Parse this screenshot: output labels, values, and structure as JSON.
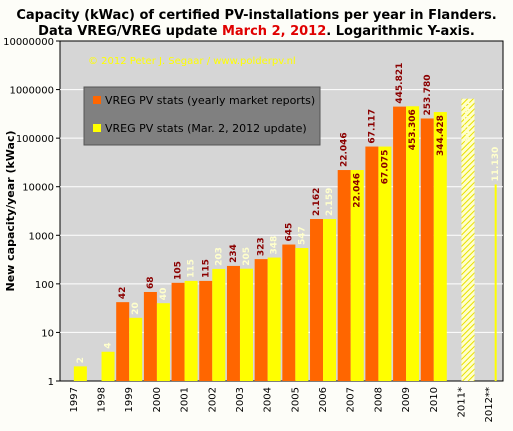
{
  "chart_data": {
    "type": "bar",
    "title_line1": "Capacity (kWac) of certified PV-installations  per year in Flanders.",
    "title_line2_pre": "Data VREG/VREG update ",
    "title_line2_highlight": "March 2, 2012",
    "title_line2_post": ". Logarithmic Y-axis.",
    "copyright": "© 2012 Peter J. Segaar / www.polderpv.nl",
    "ylabel": "New capacity/year (kWac)",
    "xlabel": "",
    "yscale": "log",
    "ylim": [
      1,
      10000000
    ],
    "ytick_labels": [
      "10000000",
      "1000000",
      "100000",
      "10000",
      "1000",
      "100",
      "10",
      "1"
    ],
    "ytick_values": [
      10000000,
      1000000,
      100000,
      10000,
      1000,
      100,
      10,
      1
    ],
    "categories": [
      "1997",
      "1998",
      "1999",
      "2000",
      "2001",
      "2002",
      "2003",
      "2004",
      "2005",
      "2006",
      "2007",
      "2008",
      "2009",
      "2010",
      "2011*",
      "2012**"
    ],
    "grid": true,
    "legend_position": "top-left",
    "series": [
      {
        "name": "VREG PV stats (yearly market reports)",
        "color": "#ff6600",
        "values": [
          null,
          null,
          42,
          68,
          105,
          115,
          234,
          323,
          645,
          2162,
          22046,
          67117,
          445821,
          253780,
          null,
          null
        ],
        "labels": [
          "",
          "",
          "42",
          "68",
          "105",
          "115",
          "234",
          "323",
          "645",
          "2.162",
          "22.046",
          "67.117",
          "445.821",
          "253.780",
          "",
          ""
        ]
      },
      {
        "name": "VREG PV stats (Mar. 2, 2012 update)",
        "color": "#ffff00",
        "values": [
          2,
          4,
          20,
          40,
          115,
          203,
          205,
          348,
          547,
          2159,
          22046,
          67075,
          453306,
          344428,
          647760,
          11130
        ],
        "labels": [
          "2",
          "4",
          "20",
          "40",
          "115",
          "203",
          "205",
          "348",
          "547",
          "2.159",
          "22.046",
          "67.075",
          "453.306",
          "344.428",
          "647.760",
          "11.130"
        ],
        "hatched": [
          false,
          false,
          false,
          false,
          false,
          false,
          false,
          false,
          false,
          false,
          false,
          false,
          false,
          false,
          true,
          true
        ]
      }
    ],
    "colors": {
      "plot_bg": "#d6d6d6",
      "label_dark": "#8b0000",
      "label_light": "#ffffcc",
      "copyright_text": "#ffff00",
      "legend_bg": "#808080",
      "highlight": "#e00000"
    }
  }
}
